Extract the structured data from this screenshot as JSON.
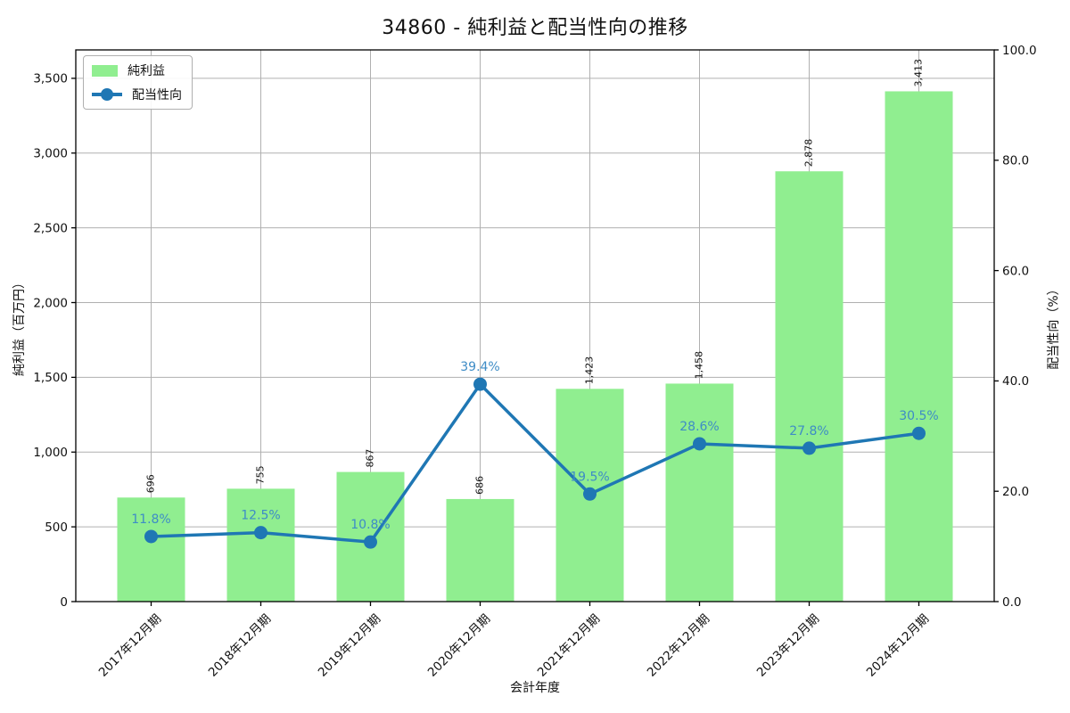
{
  "chart_data": {
    "type": "bar",
    "title": "34860 - 純利益と配当性向の推移",
    "xlabel": "会計年度",
    "categories": [
      "2017年12月期",
      "2018年12月期",
      "2019年12月期",
      "2020年12月期",
      "2021年12月期",
      "2022年12月期",
      "2023年12月期",
      "2024年12月期"
    ],
    "series": [
      {
        "name": "純利益",
        "type": "bar",
        "axis": "left",
        "color": "#90ee90",
        "values": [
          696,
          755,
          867,
          686,
          1423,
          1458,
          2878,
          3413
        ],
        "labels": [
          "696",
          "755",
          "867",
          "686",
          "1,423",
          "1,458",
          "2,878",
          "3,413"
        ]
      },
      {
        "name": "配当性向",
        "type": "line",
        "axis": "right",
        "color": "#1f77b4",
        "label_color": "#3e8cc6",
        "values": [
          11.8,
          12.5,
          10.8,
          39.4,
          19.5,
          28.6,
          27.8,
          30.5
        ],
        "labels": [
          "11.8%",
          "12.5%",
          "10.8%",
          "39.4%",
          "19.5%",
          "28.6%",
          "27.8%",
          "30.5%"
        ]
      }
    ],
    "left_axis": {
      "label": "純利益（百万円）",
      "tick_labels": [
        "0",
        "500",
        "1,000",
        "1,500",
        "2,000",
        "2,500",
        "3,000",
        "3,500"
      ],
      "tick_values": [
        0,
        500,
        1000,
        1500,
        2000,
        2500,
        3000,
        3500
      ],
      "range": [
        0,
        3690
      ]
    },
    "right_axis": {
      "label": "配当性向（%）",
      "tick_labels": [
        "0.0",
        "20.0",
        "40.0",
        "60.0",
        "80.0",
        "100.0"
      ],
      "tick_values": [
        0,
        20,
        40,
        60,
        80,
        100
      ],
      "range": [
        0,
        100
      ]
    },
    "legend": {
      "position": "upper-left",
      "entries": [
        "純利益",
        "配当性向"
      ]
    },
    "grid": true,
    "grid_color": "#b0b0b0",
    "spine_color": "#000000",
    "text_color": "#111111"
  }
}
